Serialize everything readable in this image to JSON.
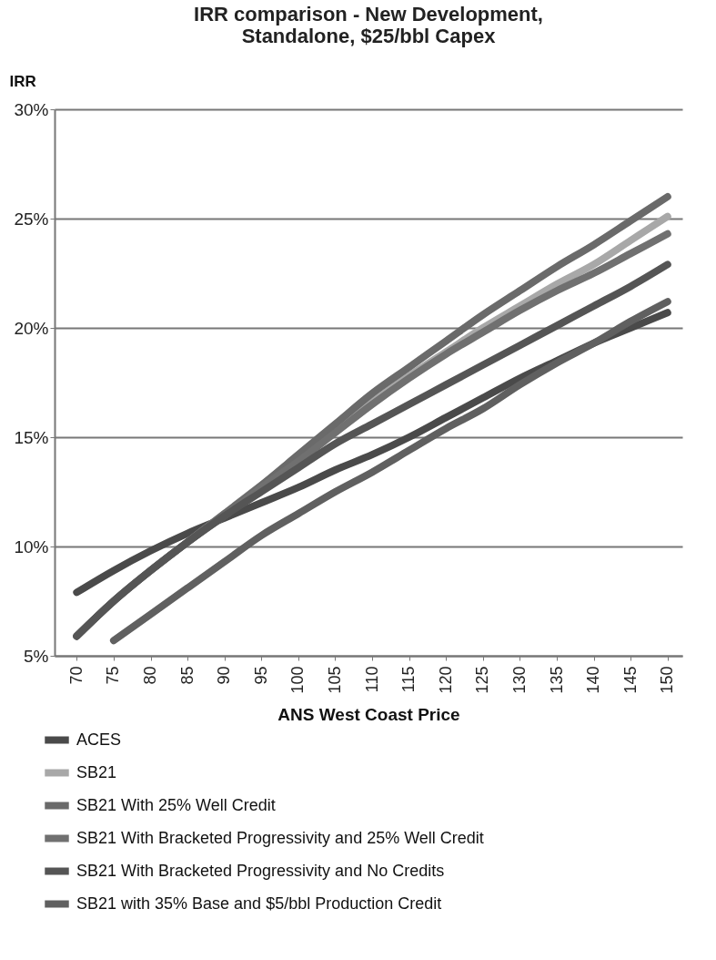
{
  "chart_data": {
    "type": "line",
    "title": "IRR comparison - New Development, Standalone, $25/bbl Capex",
    "xlabel": "ANS West Coast Price",
    "ylabel": "IRR",
    "x": [
      70,
      75,
      80,
      85,
      90,
      95,
      100,
      105,
      110,
      115,
      120,
      125,
      130,
      135,
      140,
      145,
      150
    ],
    "series": [
      {
        "name": "ACES",
        "color": "#4a4a4a",
        "values": [
          7.9,
          8.9,
          9.8,
          10.6,
          11.3,
          12.0,
          12.7,
          13.5,
          14.2,
          15.0,
          15.9,
          16.8,
          17.7,
          18.5,
          19.3,
          20.0,
          20.7
        ]
      },
      {
        "name": "SB21",
        "color": "#a8a8a8",
        "values": [
          5.9,
          7.5,
          8.9,
          10.2,
          11.5,
          12.8,
          14.0,
          15.3,
          16.6,
          17.8,
          18.9,
          20.0,
          21.0,
          22.0,
          22.9,
          24.0,
          25.1
        ]
      },
      {
        "name": "SB21 With 25% Well Credit",
        "color": "#6a6a6a",
        "values": [
          5.9,
          7.5,
          8.9,
          10.2,
          11.5,
          12.8,
          14.2,
          15.6,
          17.0,
          18.2,
          19.4,
          20.6,
          21.7,
          22.8,
          23.8,
          24.9,
          26.0
        ]
      },
      {
        "name": "SB21 With Bracketed Progressivity and 25% Well Credit",
        "color": "#707070",
        "values": [
          5.9,
          7.5,
          8.9,
          10.2,
          11.4,
          12.7,
          13.9,
          15.2,
          16.5,
          17.7,
          18.8,
          19.8,
          20.8,
          21.7,
          22.5,
          23.4,
          24.3
        ]
      },
      {
        "name": "SB21 With Bracketed Progressivity and No Credits",
        "color": "#555555",
        "values": [
          5.9,
          7.5,
          8.9,
          10.2,
          11.4,
          12.5,
          13.6,
          14.7,
          15.6,
          16.5,
          17.4,
          18.3,
          19.2,
          20.1,
          21.0,
          21.9,
          22.9
        ]
      },
      {
        "name": "SB21 with 35% Base and $5/bbl Production Credit",
        "color": "#606060",
        "values": [
          null,
          5.7,
          6.9,
          8.1,
          9.3,
          10.5,
          11.5,
          12.5,
          13.4,
          14.4,
          15.4,
          16.3,
          17.4,
          18.4,
          19.3,
          20.3,
          21.2
        ]
      }
    ],
    "xlim": [
      67,
      152
    ],
    "xticks": [
      70,
      75,
      80,
      85,
      90,
      95,
      100,
      105,
      110,
      115,
      120,
      125,
      130,
      135,
      140,
      145,
      150
    ],
    "ylim": [
      5,
      30
    ],
    "yticks": [
      {
        "value": 5,
        "label": "5%"
      },
      {
        "value": 10,
        "label": "10%"
      },
      {
        "value": 15,
        "label": "15%"
      },
      {
        "value": 20,
        "label": "20%"
      },
      {
        "value": 25,
        "label": "25%"
      },
      {
        "value": 30,
        "label": "30%"
      }
    ],
    "grid": "y",
    "legend": "bottom left",
    "marker": "none",
    "line_style": "solid"
  }
}
